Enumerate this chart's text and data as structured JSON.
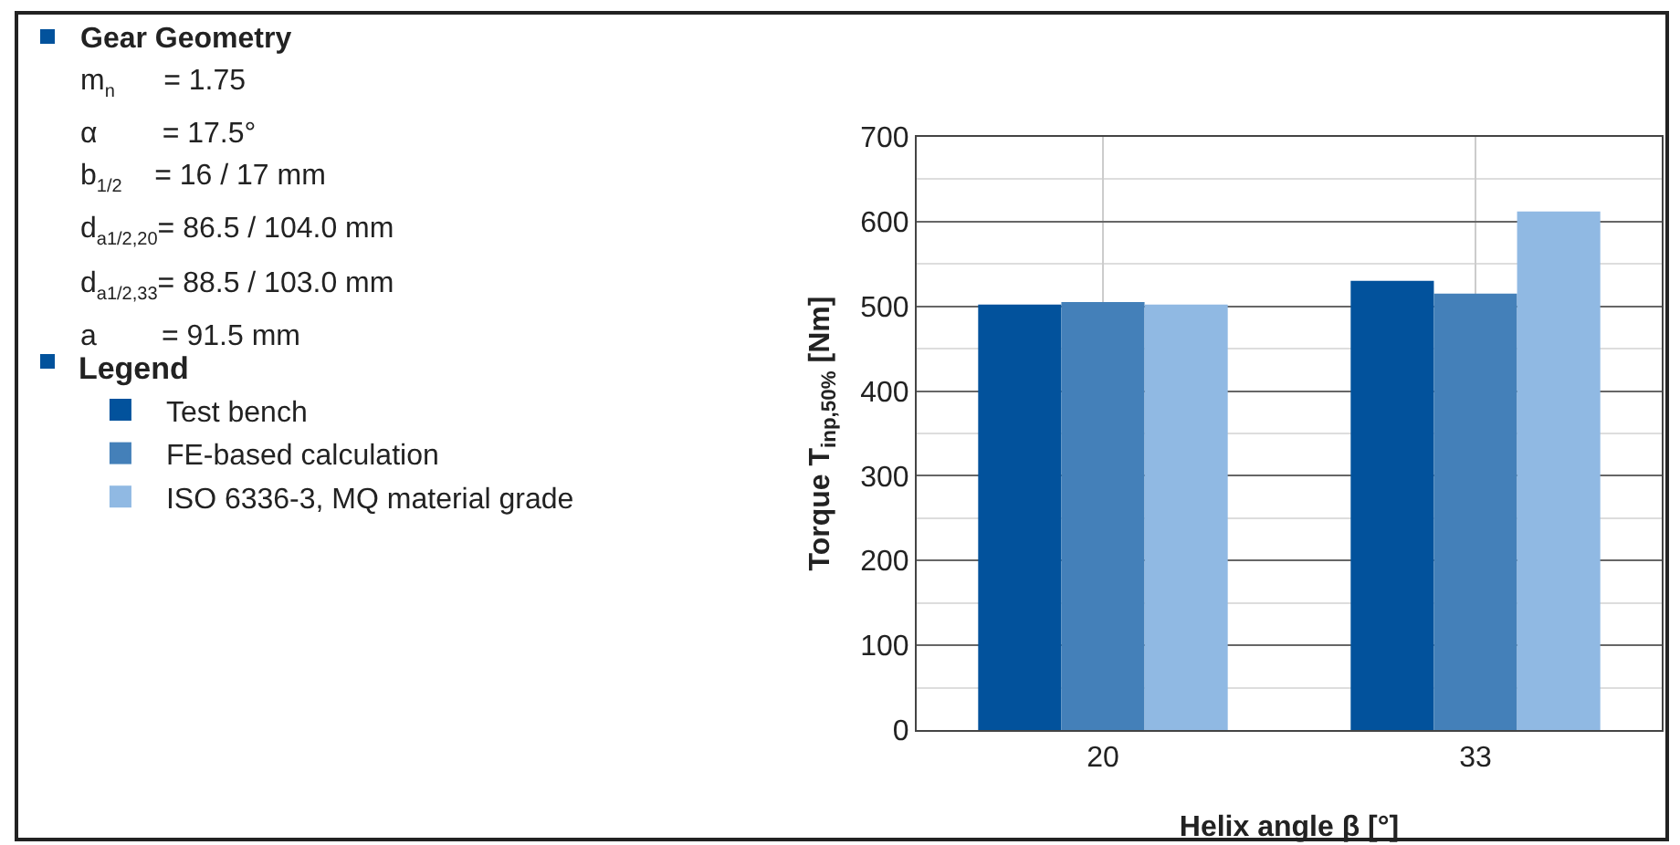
{
  "chart_data": {
    "type": "bar",
    "categories": [
      "20",
      "33"
    ],
    "series": [
      {
        "name": "Test bench",
        "color": "#02529c",
        "values": [
          502,
          530
        ]
      },
      {
        "name": "FE-based calculation",
        "color": "#4480b9",
        "values": [
          505,
          515
        ]
      },
      {
        "name": "ISO 6336-3, MQ material grade",
        "color": "#90b9e3",
        "values": [
          502,
          612
        ]
      }
    ],
    "xlabel": "Helix angle β [°]",
    "ylabel": "Torque T$_{inp,50%}$ [Nm]",
    "ylim": [
      0,
      700
    ],
    "yticks": [
      0,
      100,
      200,
      300,
      400,
      500,
      600,
      700
    ],
    "grid": true,
    "legend": "left",
    "legend_title": "Legend",
    "annotations": [
      "Gear Geometry",
      "m$_{n}$      = 1.75",
      "α        = 17.5°",
      "b$_{1/2}$    = 16 / 17 mm",
      "d$_{a1/2,20}$= 86.5 / 104.0 mm",
      "d$_{a1/2,33}$= 88.5 / 103.0 mm",
      "a        = 91.5 mm"
    ]
  }
}
